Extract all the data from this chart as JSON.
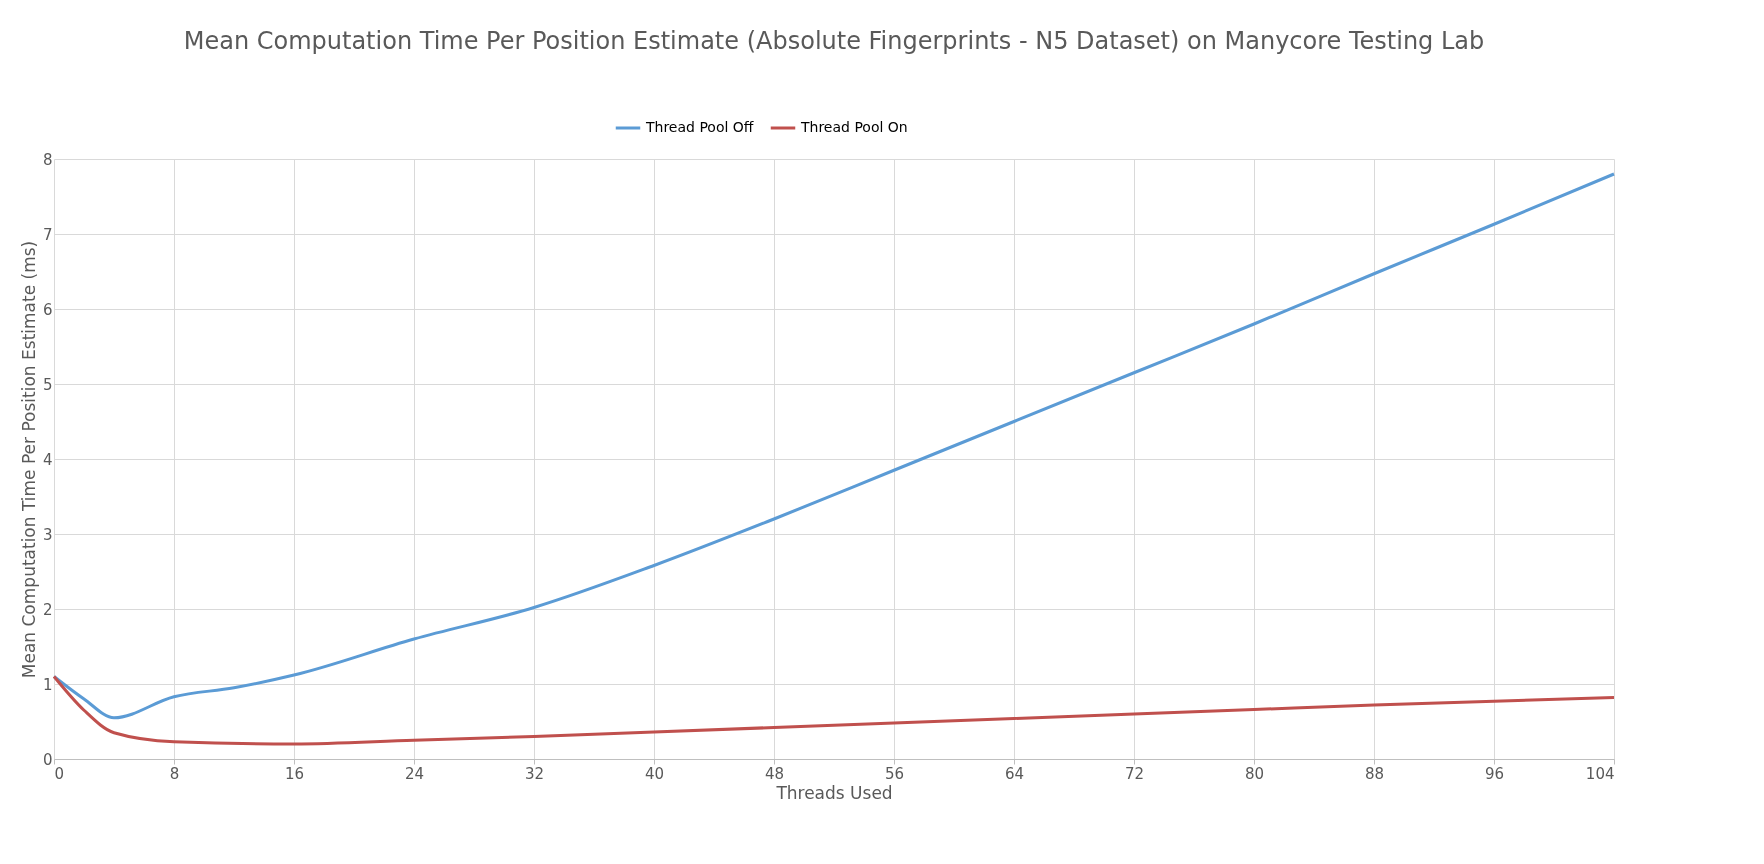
{
  "chart_data": {
    "type": "line",
    "title": "Mean Computation Time Per Position Estimate (Absolute Fingerprints - N5 Dataset) on Manycore Testing Lab",
    "xlabel": "Threads Used",
    "ylabel": "Mean Computation Time Per Position Estimate (ms)",
    "xlim": [
      0,
      104
    ],
    "xticks": [
      0,
      8,
      16,
      24,
      32,
      40,
      48,
      56,
      64,
      72,
      80,
      88,
      96,
      104
    ],
    "ylim": [
      0,
      8
    ],
    "yticks": [
      0,
      1,
      2,
      3,
      4,
      5,
      6,
      7,
      8
    ],
    "grid": true,
    "legend": "top",
    "marker": "none",
    "line_style": "solid",
    "series": [
      {
        "name": "Thread Pool Off",
        "color": "#5b9bd5",
        "x": [
          0,
          2,
          4,
          8,
          12,
          16,
          24,
          32,
          40,
          48,
          56,
          64,
          72,
          80,
          88,
          96,
          104
        ],
        "values": [
          1.1,
          0.8,
          0.55,
          0.83,
          0.95,
          1.12,
          1.6,
          2.02,
          2.58,
          3.2,
          3.85,
          4.5,
          5.15,
          5.8,
          6.47,
          7.13,
          7.8
        ]
      },
      {
        "name": "Thread Pool On",
        "color": "#c0504d",
        "x": [
          0,
          2,
          4,
          8,
          16,
          24,
          32,
          40,
          48,
          56,
          64,
          72,
          80,
          88,
          96,
          104
        ],
        "values": [
          1.1,
          0.65,
          0.35,
          0.23,
          0.2,
          0.25,
          0.3,
          0.36,
          0.42,
          0.48,
          0.54,
          0.6,
          0.66,
          0.72,
          0.77,
          0.82
        ]
      }
    ]
  }
}
